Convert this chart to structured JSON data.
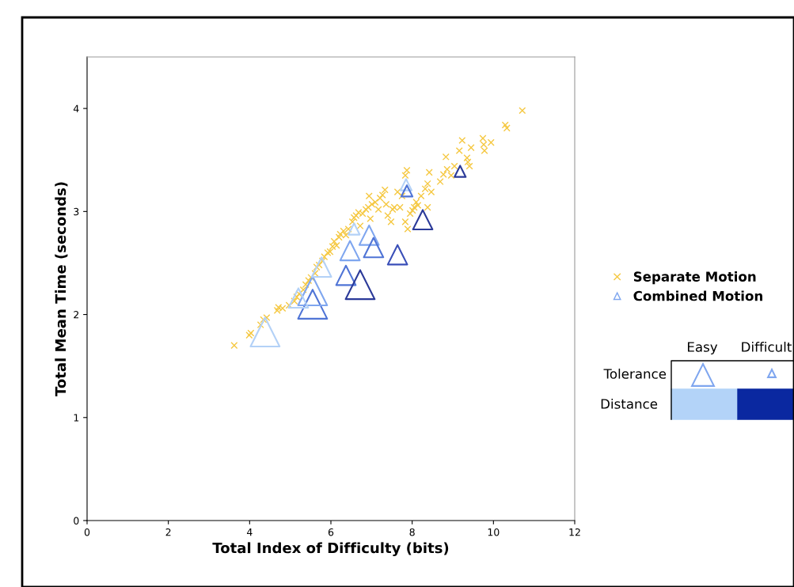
{
  "chart_data": {
    "type": "scatter",
    "xlabel": "Total Index of Difficulty (bits)",
    "ylabel": "Total Mean Time (seconds)",
    "xlim": [
      0,
      12
    ],
    "xticks": [
      0,
      2,
      4,
      6,
      8,
      10,
      12
    ],
    "ylim": [
      0,
      4.5
    ],
    "yticks": [
      0,
      1,
      2,
      3,
      4
    ],
    "grid": false,
    "legend": "right",
    "series": [
      {
        "name": "Separate Motion",
        "color": "#f5c842",
        "marker": "cross",
        "x": [
          3.62,
          3.99,
          4.03,
          4.27,
          4.34,
          4.42,
          4.68,
          4.71,
          4.81,
          4.97,
          5.1,
          5.16,
          5.22,
          5.32,
          5.38,
          5.45,
          5.51,
          5.61,
          5.65,
          5.71,
          5.79,
          5.84,
          5.92,
          5.98,
          6.04,
          6.08,
          6.14,
          6.2,
          6.23,
          6.31,
          6.37,
          6.43,
          6.53,
          6.57,
          6.62,
          6.68,
          6.72,
          6.78,
          6.86,
          6.92,
          6.94,
          6.97,
          7.01,
          7.09,
          7.17,
          7.21,
          7.27,
          7.33,
          7.36,
          7.4,
          7.48,
          7.52,
          7.56,
          7.64,
          7.7,
          7.75,
          7.83,
          7.87,
          7.83,
          7.89,
          7.95,
          8.01,
          8.05,
          8.1,
          8.14,
          8.22,
          8.32,
          8.38,
          8.42,
          8.47,
          8.38,
          8.69,
          8.77,
          8.83,
          8.86,
          8.96,
          9.04,
          9.16,
          9.23,
          9.35,
          9.37,
          9.41,
          9.45,
          9.74,
          9.76,
          9.78,
          9.94,
          10.29,
          10.33,
          10.71
        ],
        "values": [
          1.7,
          1.8,
          1.82,
          1.9,
          1.95,
          1.97,
          2.04,
          2.07,
          2.06,
          2.09,
          2.13,
          2.17,
          2.2,
          2.24,
          2.29,
          2.33,
          2.36,
          2.4,
          2.46,
          2.48,
          2.52,
          2.56,
          2.6,
          2.61,
          2.66,
          2.71,
          2.67,
          2.75,
          2.78,
          2.81,
          2.77,
          2.83,
          2.9,
          2.94,
          2.96,
          2.99,
          2.86,
          2.98,
          3.02,
          3.04,
          3.15,
          2.93,
          3.07,
          3.09,
          3.02,
          3.13,
          3.16,
          3.21,
          3.07,
          2.96,
          2.9,
          3.02,
          3.04,
          3.19,
          3.04,
          3.15,
          3.35,
          3.4,
          2.9,
          2.83,
          2.98,
          3.01,
          3.04,
          3.09,
          3.06,
          3.15,
          3.22,
          3.27,
          3.38,
          3.19,
          3.04,
          3.29,
          3.36,
          3.53,
          3.41,
          3.35,
          3.44,
          3.59,
          3.69,
          3.52,
          3.48,
          3.44,
          3.62,
          3.71,
          3.65,
          3.59,
          3.67,
          3.84,
          3.81,
          3.98
        ]
      },
      {
        "name": "Combined Motion",
        "color": "#7fa6ef",
        "marker": "triangle",
        "x": [
          4.38,
          5.55,
          5.55,
          5.2,
          5.77,
          6.37,
          6.72,
          6.47,
          6.57,
          6.94,
          7.05,
          7.85,
          7.87,
          8.26,
          9.18,
          7.64
        ],
        "values": [
          1.83,
          2.1,
          2.23,
          2.16,
          2.46,
          2.38,
          2.29,
          2.62,
          2.83,
          2.77,
          2.65,
          3.26,
          3.2,
          2.92,
          3.39,
          2.58
        ],
        "sizes": [
          1,
          1,
          1,
          0.45,
          0.45,
          0.45,
          1,
          0.45,
          0.15,
          0.45,
          0.45,
          0.15,
          0.15,
          0.45,
          0.15,
          0.45
        ],
        "colors": [
          "#b3d1f7",
          "#4f74d6",
          "#7fa6ef",
          "#b3d1f7",
          "#b3d1f7",
          "#4f74d6",
          "#2b3a99",
          "#7fa6ef",
          "#b3d1f7",
          "#7fa6ef",
          "#4f74d6",
          "#b3d1f7",
          "#4f74d6",
          "#2b3a99",
          "#2b3a99",
          "#3a4fb8"
        ]
      }
    ],
    "annotations": [
      "Easy",
      "Difficult",
      "Tolerance",
      "Distance"
    ]
  }
}
